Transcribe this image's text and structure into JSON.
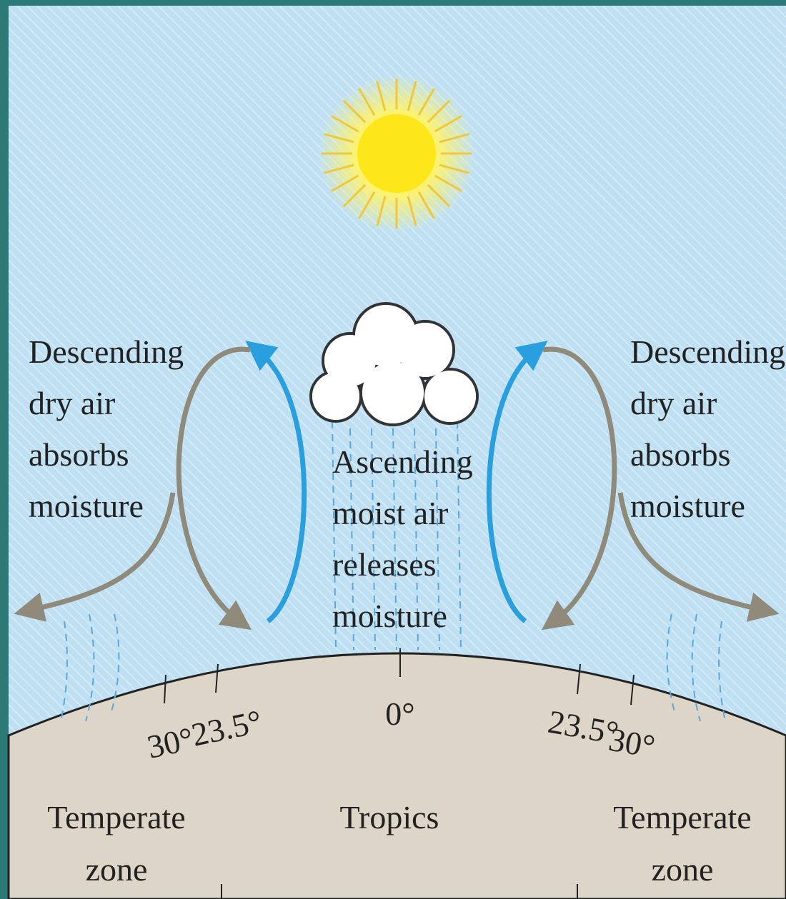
{
  "left_label": [
    "Descending",
    "dry air",
    "absorbs",
    "moisture"
  ],
  "center_label": [
    "Ascending",
    "moist air",
    "releases",
    "moisture"
  ],
  "right_label": [
    "Descending",
    "dry air",
    "absorbs",
    "moisture"
  ],
  "latitudes": {
    "left_30": "30°",
    "left_23": "23.5°",
    "equator": "0°",
    "right_23": "23.5°",
    "right_30": "30°"
  },
  "zones": {
    "left": [
      "Temperate",
      "zone"
    ],
    "center": "Tropics",
    "right": [
      "Temperate",
      "zone"
    ]
  }
}
